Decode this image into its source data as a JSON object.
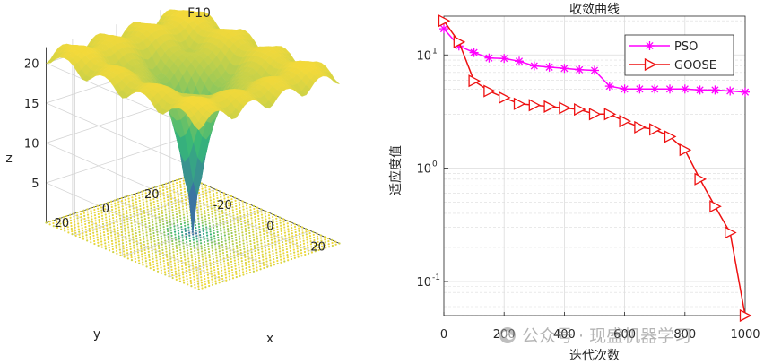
{
  "colors": {
    "surface_high": "#f3d93a",
    "surface_mid": "#35b779",
    "surface_low": "#3e4fb8",
    "pso": "#ff00ff",
    "goose": "#ee1111",
    "grid": "#dcdcdc",
    "axis": "#262626"
  },
  "watermark": {
    "text": "公众号 · 现盛机器学习",
    "icon": "wechat-icon"
  },
  "chart_data": [
    {
      "type": "surface3d",
      "title": "F10",
      "function_name": "F10",
      "xlabel": "x",
      "ylabel": "y",
      "zlabel": "z",
      "x_range": [
        -32,
        32
      ],
      "y_range": [
        -32,
        32
      ],
      "zlim": [
        0,
        22
      ],
      "x_ticks": [
        -20,
        0,
        20
      ],
      "y_ticks": [
        -20,
        0,
        20
      ],
      "z_ticks": [
        5,
        10,
        15,
        20
      ],
      "x_tick_labels": [
        "-20",
        "0",
        "20"
      ],
      "y_tick_labels": [
        "-20",
        "0",
        "20"
      ],
      "z_tick_labels": [
        "5",
        "10",
        "15",
        "20"
      ],
      "grid": true,
      "contour_below": true,
      "colormap": "parula",
      "grid_points": 41
    },
    {
      "type": "line",
      "title": "收敛曲线",
      "xlabel": "迭代次数",
      "ylabel": "适应度值",
      "y_scale": "log",
      "xlim": [
        0,
        1000
      ],
      "ylim": [
        0.05,
        22
      ],
      "x_ticks": [
        0,
        200,
        400,
        600,
        800,
        1000
      ],
      "x_tick_labels": [
        "0",
        "200",
        "400",
        "600",
        "800",
        "1000"
      ],
      "y_ticks": [
        0.1,
        1,
        10
      ],
      "y_tick_labels": [
        "10",
        "10",
        "10"
      ],
      "y_tick_exponents": [
        "-1",
        "0",
        "1"
      ],
      "grid": true,
      "legend_position": "top-right",
      "series": [
        {
          "name": "PSO",
          "marker": "asterisk",
          "color": "#ff00ff",
          "x": [
            0,
            50,
            100,
            150,
            200,
            250,
            300,
            350,
            400,
            450,
            500,
            550,
            600,
            650,
            700,
            750,
            800,
            850,
            900,
            950,
            1000
          ],
          "y": [
            17,
            12,
            10.5,
            9.4,
            9.3,
            8.8,
            8.0,
            7.8,
            7.6,
            7.4,
            7.3,
            5.3,
            5.0,
            5.0,
            5.0,
            5.0,
            5.0,
            4.9,
            4.9,
            4.8,
            4.7
          ]
        },
        {
          "name": "GOOSE",
          "marker": "triangle-right",
          "color": "#ee1111",
          "x": [
            0,
            50,
            100,
            150,
            200,
            250,
            300,
            350,
            400,
            450,
            500,
            550,
            600,
            650,
            700,
            750,
            800,
            850,
            900,
            950,
            1000
          ],
          "y": [
            20,
            13,
            5.9,
            4.8,
            4.2,
            3.7,
            3.6,
            3.5,
            3.4,
            3.3,
            3.0,
            3.0,
            2.6,
            2.3,
            2.2,
            1.9,
            1.45,
            0.8,
            0.46,
            0.27,
            0.05
          ]
        }
      ]
    }
  ]
}
